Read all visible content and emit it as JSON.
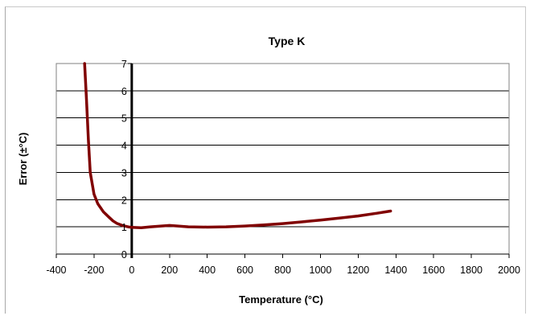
{
  "chart_data": {
    "type": "line",
    "title": "Type K",
    "xlabel": "Temperature (°C)",
    "ylabel": "Error (±°C)",
    "xlim": [
      -400,
      2000
    ],
    "ylim": [
      0,
      7
    ],
    "x_ticks": [
      "-400",
      "-200",
      "0",
      "200",
      "400",
      "600",
      "800",
      "1000",
      "1200",
      "1400",
      "1600",
      "1800",
      "2000"
    ],
    "y_ticks": [
      "0",
      "1",
      "2",
      "3",
      "4",
      "5",
      "6",
      "7"
    ],
    "grid": true,
    "legend": "none",
    "series": [
      {
        "color": "#800000",
        "x": [
          -250,
          -240,
          -230,
          -220,
          -200,
          -180,
          -150,
          -120,
          -100,
          -80,
          -50,
          -20,
          0,
          50,
          100,
          200,
          300,
          400,
          500,
          600,
          700,
          800,
          900,
          1000,
          1100,
          1200,
          1300,
          1372
        ],
        "y": [
          7.0,
          5.7,
          4.2,
          3.0,
          2.2,
          1.85,
          1.55,
          1.35,
          1.22,
          1.13,
          1.05,
          1.0,
          0.98,
          0.97,
          1.0,
          1.05,
          1.0,
          0.99,
          1.0,
          1.03,
          1.07,
          1.12,
          1.18,
          1.25,
          1.32,
          1.4,
          1.5,
          1.58
        ]
      }
    ]
  }
}
